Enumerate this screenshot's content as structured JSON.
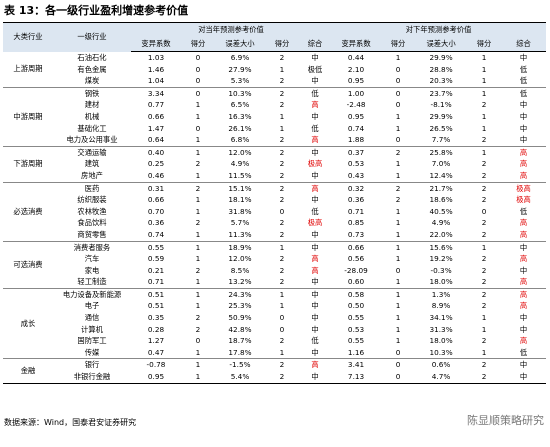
{
  "header": {
    "title": "表 13：各一级行业盈利增速参考价值"
  },
  "table": {
    "col_group": "大类行业",
    "col_industry": "一级行业",
    "current_title": "对当年预测参考价值",
    "next_title": "对下年预测参考价值",
    "metric_headers": [
      "变异系数",
      "得分",
      "误差大小",
      "得分",
      "综合"
    ],
    "highlight_color": "#e00000",
    "highlight_ratings": [
      "高",
      "极高"
    ],
    "groups": [
      {
        "name": "上游周期",
        "rows": [
          [
            "石油石化",
            "1.03",
            "0",
            "6.9%",
            "2",
            "中",
            "0.44",
            "1",
            "29.9%",
            "1",
            "中"
          ],
          [
            "有色金属",
            "1.46",
            "0",
            "27.9%",
            "1",
            "极低",
            "2.10",
            "0",
            "28.8%",
            "1",
            "低"
          ],
          [
            "煤炭",
            "1.04",
            "0",
            "5.3%",
            "2",
            "中",
            "0.95",
            "0",
            "20.3%",
            "1",
            "低"
          ]
        ]
      },
      {
        "name": "中游周期",
        "rows": [
          [
            "钢铁",
            "3.34",
            "0",
            "10.3%",
            "2",
            "低",
            "1.00",
            "0",
            "23.7%",
            "1",
            "低"
          ],
          [
            "建材",
            "0.77",
            "1",
            "6.5%",
            "2",
            "高",
            "-2.48",
            "0",
            "-8.1%",
            "2",
            "中"
          ],
          [
            "机械",
            "0.66",
            "1",
            "16.3%",
            "1",
            "中",
            "0.95",
            "1",
            "29.9%",
            "1",
            "中"
          ],
          [
            "基础化工",
            "1.47",
            "0",
            "26.1%",
            "1",
            "低",
            "0.74",
            "1",
            "26.5%",
            "1",
            "中"
          ],
          [
            "电力及公用事业",
            "0.64",
            "1",
            "6.8%",
            "2",
            "高",
            "1.88",
            "0",
            "7.7%",
            "2",
            "中"
          ]
        ]
      },
      {
        "name": "下游周期",
        "rows": [
          [
            "交通运输",
            "0.40",
            "1",
            "12.0%",
            "2",
            "中",
            "0.37",
            "2",
            "25.8%",
            "1",
            "高"
          ],
          [
            "建筑",
            "0.25",
            "2",
            "4.9%",
            "2",
            "极高",
            "0.53",
            "1",
            "7.0%",
            "2",
            "高"
          ],
          [
            "房地产",
            "0.46",
            "1",
            "11.5%",
            "2",
            "中",
            "0.43",
            "1",
            "12.4%",
            "2",
            "高"
          ]
        ]
      },
      {
        "name": "必选消费",
        "rows": [
          [
            "医药",
            "0.31",
            "2",
            "15.1%",
            "2",
            "高",
            "0.32",
            "2",
            "21.7%",
            "2",
            "极高"
          ],
          [
            "纺织服装",
            "0.66",
            "1",
            "18.1%",
            "2",
            "中",
            "0.36",
            "2",
            "18.6%",
            "2",
            "极高"
          ],
          [
            "农林牧渔",
            "0.70",
            "1",
            "31.8%",
            "0",
            "低",
            "0.71",
            "1",
            "40.5%",
            "0",
            "低"
          ],
          [
            "食品饮料",
            "0.36",
            "2",
            "5.7%",
            "2",
            "极高",
            "0.85",
            "1",
            "4.9%",
            "2",
            "高"
          ],
          [
            "商贸零售",
            "0.74",
            "1",
            "11.3%",
            "2",
            "中",
            "0.73",
            "1",
            "22.0%",
            "2",
            "高"
          ]
        ]
      },
      {
        "name": "可选消费",
        "rows": [
          [
            "消费者服务",
            "0.55",
            "1",
            "18.9%",
            "1",
            "中",
            "0.66",
            "1",
            "15.6%",
            "1",
            "中"
          ],
          [
            "汽车",
            "0.59",
            "1",
            "12.0%",
            "2",
            "高",
            "0.56",
            "1",
            "19.2%",
            "2",
            "高"
          ],
          [
            "家电",
            "0.21",
            "2",
            "8.5%",
            "2",
            "高",
            "-28.09",
            "0",
            "-0.3%",
            "2",
            "中"
          ],
          [
            "轻工制造",
            "0.71",
            "1",
            "13.2%",
            "2",
            "中",
            "0.60",
            "1",
            "18.0%",
            "2",
            "高"
          ]
        ]
      },
      {
        "name": "成长",
        "rows": [
          [
            "电力设备及新能源",
            "0.51",
            "1",
            "24.3%",
            "1",
            "中",
            "0.58",
            "1",
            "1.3%",
            "2",
            "高"
          ],
          [
            "电子",
            "0.51",
            "1",
            "25.3%",
            "1",
            "中",
            "0.50",
            "1",
            "8.9%",
            "2",
            "高"
          ],
          [
            "通信",
            "0.35",
            "2",
            "50.9%",
            "0",
            "中",
            "0.55",
            "1",
            "34.1%",
            "1",
            "中"
          ],
          [
            "计算机",
            "0.28",
            "2",
            "42.8%",
            "0",
            "中",
            "0.53",
            "1",
            "31.3%",
            "1",
            "中"
          ],
          [
            "国防军工",
            "1.27",
            "0",
            "18.7%",
            "2",
            "低",
            "0.55",
            "1",
            "18.0%",
            "2",
            "高"
          ],
          [
            "传媒",
            "0.47",
            "1",
            "17.8%",
            "1",
            "中",
            "1.16",
            "0",
            "10.3%",
            "1",
            "低"
          ]
        ]
      },
      {
        "name": "金融",
        "rows": [
          [
            "银行",
            "-0.78",
            "1",
            "-1.5%",
            "2",
            "高",
            "3.41",
            "0",
            "0.6%",
            "2",
            "中"
          ],
          [
            "非银行金融",
            "0.95",
            "1",
            "5.4%",
            "2",
            "中",
            "7.13",
            "0",
            "4.7%",
            "2",
            "中"
          ]
        ]
      }
    ]
  },
  "footer": {
    "source": "数据来源：Wind，国泰君安证券研究",
    "watermark": "陈显顺策略研究"
  }
}
